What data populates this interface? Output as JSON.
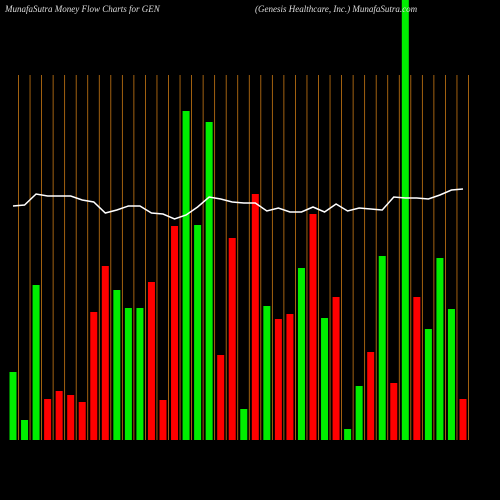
{
  "chart_data": {
    "type": "bar",
    "title": "MunafaSutra  Money Flow  Charts for GEN",
    "subtitle": "(Genesis Healthcare,  Inc.) MunafaSutra.com",
    "categories": [
      null,
      null,
      null,
      null,
      null,
      null,
      null,
      null,
      null,
      null,
      null,
      null,
      null,
      null,
      null,
      null,
      null,
      null,
      null,
      null,
      null,
      null,
      null,
      null,
      null,
      null,
      null,
      null,
      null,
      null,
      null,
      null,
      null,
      null,
      null,
      null,
      null,
      null,
      null,
      null
    ],
    "values": [
      68,
      20,
      155,
      41,
      49,
      45,
      38,
      128,
      174,
      150,
      132,
      132,
      158,
      40,
      214,
      329,
      215,
      318,
      85,
      202,
      31,
      246,
      134,
      121,
      126,
      172,
      226,
      122,
      143,
      11,
      54,
      88,
      184,
      57,
      440,
      143,
      111,
      182,
      131,
      41
    ],
    "colors": [
      "#00ee00",
      "#00ee00",
      "#00ee00",
      "#ff0000",
      "#ff0000",
      "#ff0000",
      "#ff0000",
      "#ff0000",
      "#ff0000",
      "#00ee00",
      "#00ee00",
      "#00ee00",
      "#ff0000",
      "#ff0000",
      "#ff0000",
      "#00ee00",
      "#00ee00",
      "#00ee00",
      "#ff0000",
      "#ff0000",
      "#00ee00",
      "#ff0000",
      "#00ee00",
      "#ff0000",
      "#ff0000",
      "#00ee00",
      "#ff0000",
      "#00ee00",
      "#ff0000",
      "#00ee00",
      "#00ee00",
      "#ff0000",
      "#00ee00",
      "#ff0000",
      "#00ee00",
      "#ff0000",
      "#00ee00",
      "#00ee00",
      "#00ee00",
      "#ff0000"
    ],
    "line": {
      "color": "#ffffff",
      "values": [
        234,
        235,
        246,
        244,
        244,
        244,
        240,
        238,
        227,
        230,
        234,
        234,
        227,
        226,
        221,
        225,
        233,
        243,
        241,
        238,
        237,
        237,
        229,
        232,
        228,
        228,
        233,
        228,
        236,
        229,
        232,
        231,
        230,
        243,
        242,
        242,
        241,
        245,
        250,
        251
      ]
    },
    "ylim": [
      0,
      440
    ],
    "grid": true,
    "grid_color": "#c87814"
  }
}
